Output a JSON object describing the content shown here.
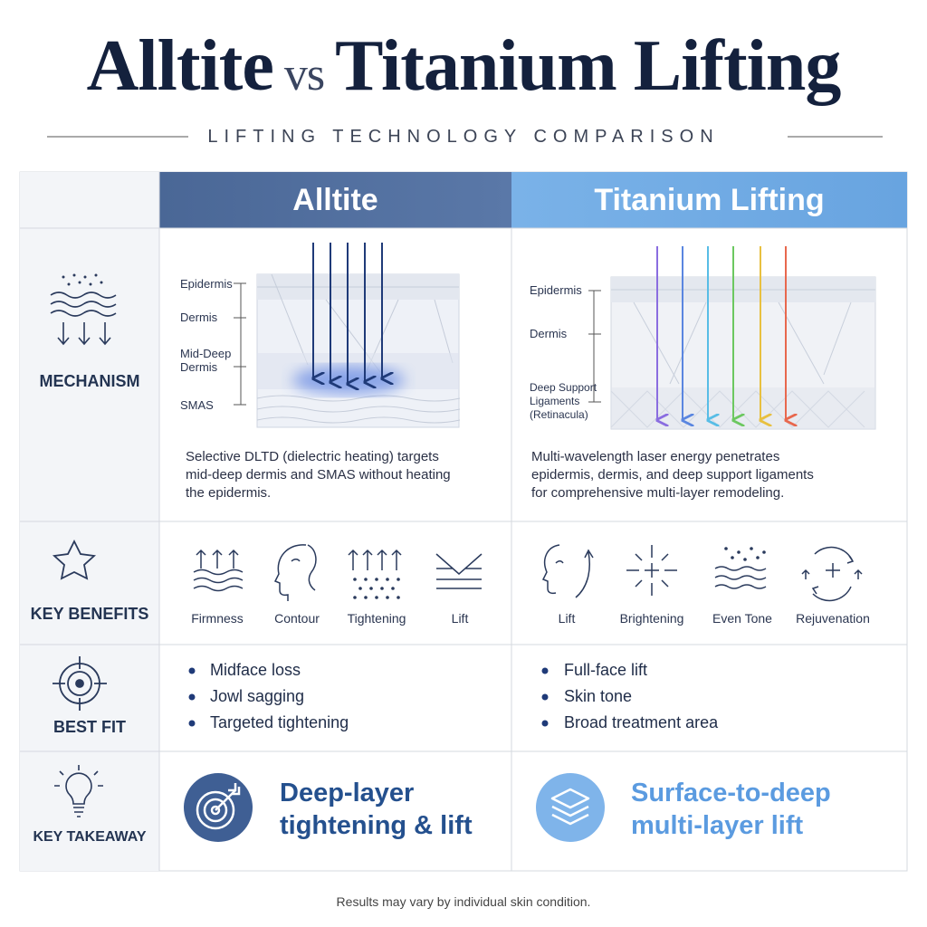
{
  "header": {
    "title_left": "Alltite",
    "title_mid": "vs",
    "title_right": "Titanium Lifting",
    "subtitle": "LIFTING TECHNOLOGY COMPARISON"
  },
  "columns": [
    "Alltite",
    "Titanium Lifting"
  ],
  "mechanism": {
    "label": "MECHANISM",
    "alltite": {
      "layers": [
        "Epidermis",
        "Dermis",
        "Mid-Deep Dermis",
        "SMAS"
      ],
      "text": "Selective DLTD (dielectric heating) targets mid-deep dermis and SMAS without heating the epidermis."
    },
    "titanium": {
      "layers": [
        "Epidermis",
        "Dermis",
        "Deep Support Ligaments (Retinacula)"
      ],
      "text": "Multi-wavelength laser energy penetrates epidermis, dermis, and deep support ligaments for comprehensive multi-layer remodeling."
    }
  },
  "key_benefits": {
    "label": "KEY BENEFITS",
    "alltite": [
      "Firmness",
      "Contour",
      "Tightening",
      "Lift"
    ],
    "titanium": [
      "Lift",
      "Brightening",
      "Even Tone",
      "Rejuvenation"
    ]
  },
  "best_fit": {
    "label": "BEST FIT",
    "alltite": [
      "Midface loss",
      "Jowl sagging",
      "Targeted tightening"
    ],
    "titanium": [
      "Full-face lift",
      "Skin tone",
      "Broad treatment area"
    ]
  },
  "key_takeaway": {
    "label": "KEY TAKEAWAY",
    "alltite": "Deep-layer tightening & lift",
    "titanium": "Surface-to-deep multi-layer lift"
  },
  "footer": "Results may vary by individual skin condition."
}
